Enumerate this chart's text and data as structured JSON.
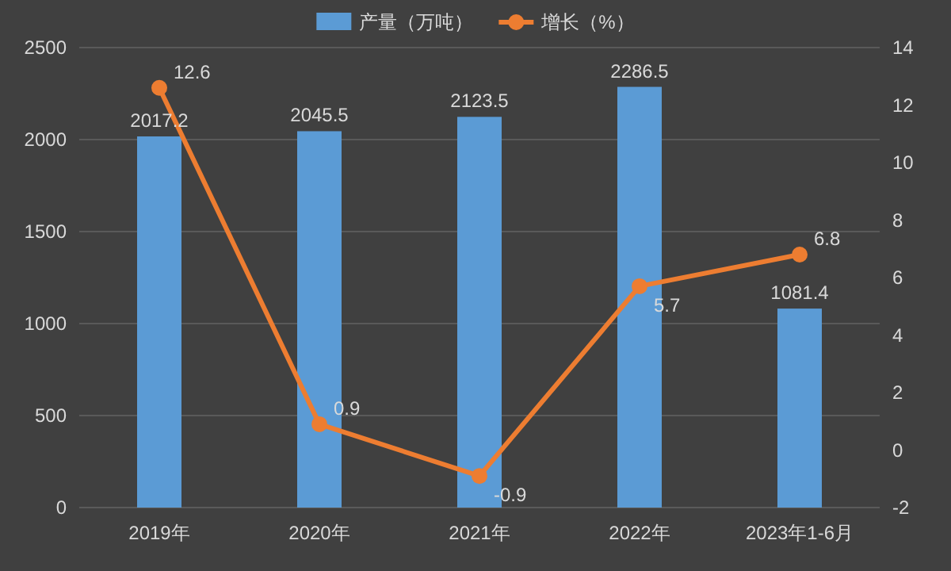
{
  "chart_data": {
    "type": "bar",
    "categories": [
      "2019年",
      "2020年",
      "2021年",
      "2022年",
      "2023年1-6月"
    ],
    "series": [
      {
        "name": "产量（万吨）",
        "color": "#5b9bd5",
        "values": [
          2017.2,
          2045.5,
          2123.5,
          2286.5,
          1081.4
        ]
      },
      {
        "name": "增长（%）",
        "type": "line",
        "axis": "y2",
        "color": "#ed7d31",
        "values": [
          12.6,
          0.9,
          -0.9,
          5.7,
          6.8
        ]
      }
    ],
    "ylim": [
      0,
      2500
    ],
    "yticks": [
      0,
      500,
      1000,
      1500,
      2000,
      2500
    ],
    "y2lim": [
      -2,
      14
    ],
    "y2ticks": [
      -2,
      0,
      2,
      4,
      6,
      8,
      10,
      12,
      14
    ],
    "grid": "y",
    "legend": "top",
    "marker": "circle",
    "data_labels": true
  }
}
